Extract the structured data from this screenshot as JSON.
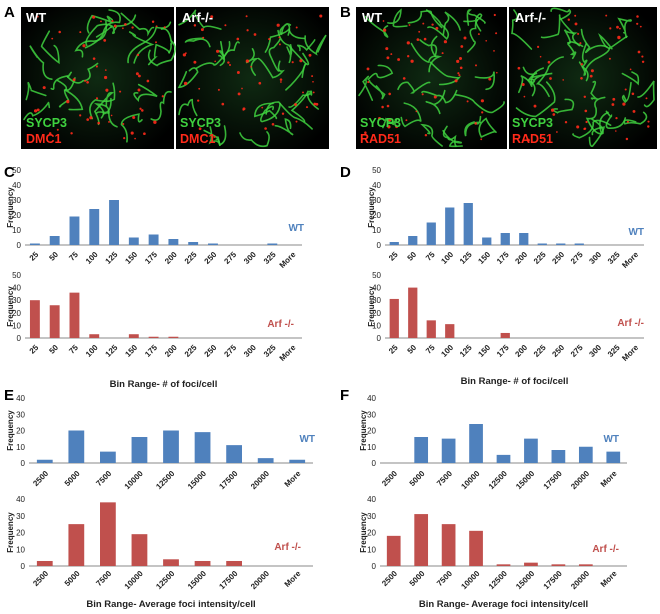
{
  "panels": {
    "A": {
      "letter": "A",
      "images": [
        {
          "title": "WT",
          "label1": "SYCP3",
          "label2": "DMC1"
        },
        {
          "title": "Arf-/-",
          "label1": "SYCP3",
          "label2": "DMC1"
        }
      ]
    },
    "B": {
      "letter": "B",
      "images": [
        {
          "title": "WT",
          "label1": "SYCP3",
          "label2": "RAD51"
        },
        {
          "title": "Arf-/-",
          "label1": "SYCP3",
          "label2": "RAD51"
        }
      ]
    }
  },
  "colors": {
    "wt": "#4f81bd",
    "arf": "#c0504d",
    "green": "#3fd23f",
    "red": "#ff2a1a",
    "axis": "#888888"
  },
  "chart_data": [
    {
      "id": "C-top",
      "panel": "C",
      "type": "bar",
      "categories": [
        "25",
        "50",
        "75",
        "100",
        "125",
        "150",
        "175",
        "200",
        "225",
        "250",
        "275",
        "300",
        "325",
        "More"
      ],
      "values": [
        1,
        6,
        19,
        24,
        30,
        5,
        7,
        4,
        2,
        1,
        0,
        0,
        1,
        0
      ],
      "ylim": [
        0,
        50
      ],
      "yticks": [
        0,
        10,
        20,
        30,
        40,
        50
      ],
      "ylabel": "Frequency",
      "xlabel": "",
      "series_label": "WT",
      "color": "#4f81bd"
    },
    {
      "id": "C-bottom",
      "panel": "C",
      "type": "bar",
      "categories": [
        "25",
        "50",
        "75",
        "100",
        "125",
        "150",
        "175",
        "200",
        "225",
        "250",
        "275",
        "300",
        "325",
        "More"
      ],
      "values": [
        30,
        26,
        36,
        3,
        0,
        3,
        1,
        1,
        0,
        0,
        0,
        0,
        0,
        0
      ],
      "ylim": [
        0,
        50
      ],
      "yticks": [
        0,
        10,
        20,
        30,
        40,
        50
      ],
      "ylabel": "Frequency",
      "xlabel": "Bin Range- # of foci/cell",
      "series_label": "Arf -/-",
      "color": "#c0504d"
    },
    {
      "id": "D-top",
      "panel": "D",
      "type": "bar",
      "categories": [
        "25",
        "50",
        "75",
        "100",
        "125",
        "150",
        "175",
        "200",
        "225",
        "250",
        "275",
        "300",
        "325",
        "More"
      ],
      "values": [
        2,
        6,
        15,
        25,
        28,
        5,
        8,
        8,
        1,
        1,
        1,
        0,
        0,
        0
      ],
      "ylim": [
        0,
        50
      ],
      "yticks": [
        0,
        10,
        20,
        30,
        40,
        50
      ],
      "ylabel": "Frequency",
      "xlabel": "",
      "series_label": "WT",
      "color": "#4f81bd"
    },
    {
      "id": "D-bottom",
      "panel": "D",
      "type": "bar",
      "categories": [
        "25",
        "50",
        "75",
        "100",
        "125",
        "150",
        "175",
        "200",
        "225",
        "250",
        "275",
        "300",
        "325",
        "More"
      ],
      "values": [
        31,
        40,
        14,
        11,
        0,
        0,
        4,
        0,
        0,
        0,
        0,
        0,
        0,
        0
      ],
      "ylim": [
        0,
        50
      ],
      "yticks": [
        0,
        10,
        20,
        30,
        40,
        50
      ],
      "ylabel": "Frequency",
      "xlabel": "Bin Range- # of foci/cell",
      "series_label": "Arf -/-",
      "color": "#c0504d"
    },
    {
      "id": "E-top",
      "panel": "E",
      "type": "bar",
      "categories": [
        "2500",
        "5000",
        "7500",
        "10000",
        "12500",
        "15000",
        "17500",
        "20000",
        "More"
      ],
      "values": [
        2,
        20,
        7,
        16,
        20,
        19,
        11,
        3,
        2
      ],
      "ylim": [
        0,
        40
      ],
      "yticks": [
        0,
        10,
        20,
        30,
        40
      ],
      "ylabel": "Frequency",
      "xlabel": "",
      "series_label": "WT",
      "color": "#4f81bd"
    },
    {
      "id": "E-bottom",
      "panel": "E",
      "type": "bar",
      "categories": [
        "2500",
        "5000",
        "7500",
        "10000",
        "12500",
        "15000",
        "17500",
        "20000",
        "More"
      ],
      "values": [
        3,
        25,
        38,
        19,
        4,
        3,
        3,
        0,
        0
      ],
      "ylim": [
        0,
        40
      ],
      "yticks": [
        0,
        10,
        20,
        30,
        40
      ],
      "ylabel": "Frequency",
      "xlabel": "Bin Range- Average foci intensity/cell",
      "series_label": "Arf -/-",
      "color": "#c0504d"
    },
    {
      "id": "F-top",
      "panel": "F",
      "type": "bar",
      "categories": [
        "2500",
        "5000",
        "7500",
        "10000",
        "12500",
        "15000",
        "17500",
        "20000",
        "More"
      ],
      "values": [
        0,
        16,
        15,
        24,
        5,
        15,
        8,
        10,
        7
      ],
      "ylim": [
        0,
        40
      ],
      "yticks": [
        0,
        10,
        20,
        30,
        40
      ],
      "ylabel": "Frequency",
      "xlabel": "",
      "series_label": "WT",
      "color": "#4f81bd"
    },
    {
      "id": "F-bottom",
      "panel": "F",
      "type": "bar",
      "categories": [
        "2500",
        "5000",
        "7500",
        "10000",
        "12500",
        "15000",
        "17500",
        "20000",
        "More"
      ],
      "values": [
        18,
        31,
        25,
        21,
        1,
        2,
        1,
        1,
        0
      ],
      "ylim": [
        0,
        40
      ],
      "yticks": [
        0,
        10,
        20,
        30,
        40
      ],
      "ylabel": "Frequency",
      "xlabel": "Bin Range- Average foci intensity/cell",
      "series_label": "Arf -/-",
      "color": "#c0504d"
    }
  ]
}
